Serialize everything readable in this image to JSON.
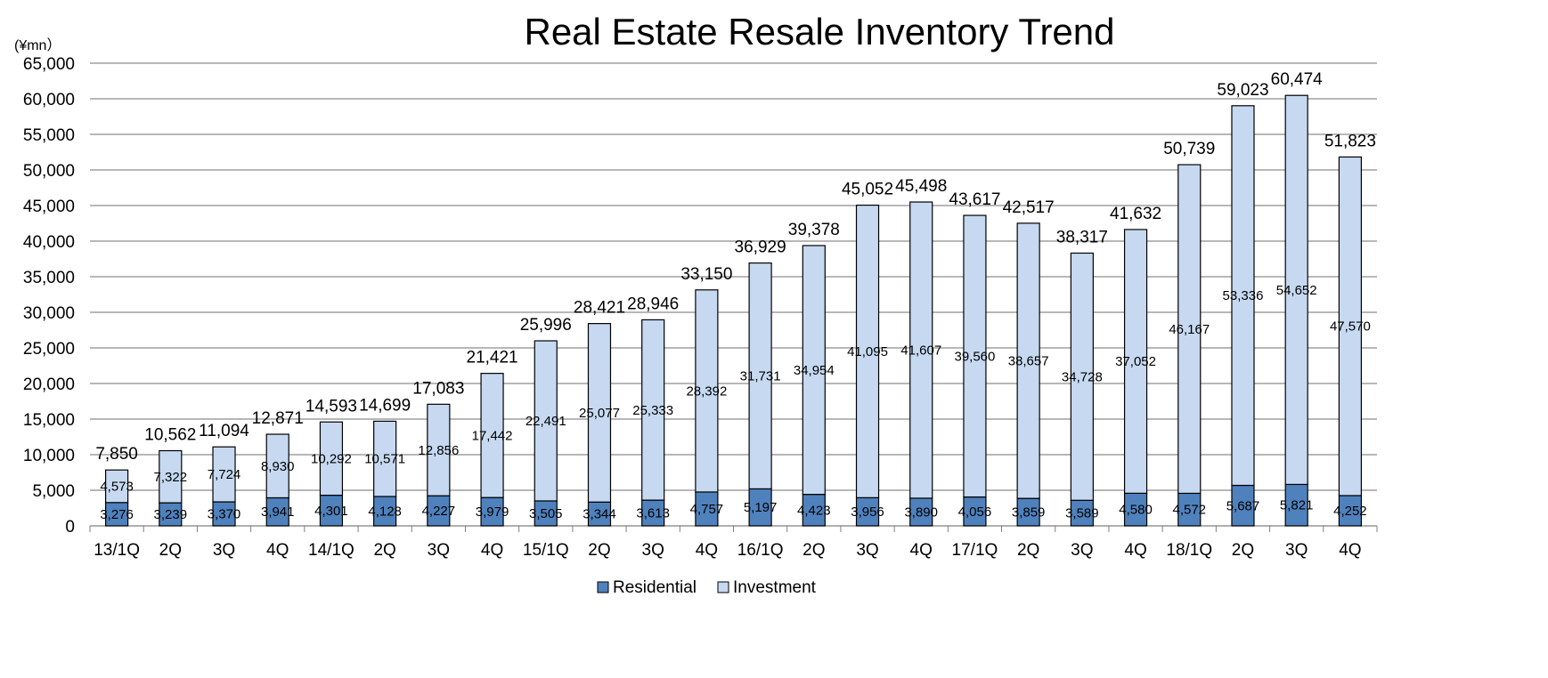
{
  "chart_data": {
    "type": "bar",
    "stacked": true,
    "title": "Real Estate Resale Inventory Trend",
    "unit_label": "(¥mn）",
    "categories": [
      "13/1Q",
      "2Q",
      "3Q",
      "4Q",
      "14/1Q",
      "2Q",
      "3Q",
      "4Q",
      "15/1Q",
      "2Q",
      "3Q",
      "4Q",
      "16/1Q",
      "2Q",
      "3Q",
      "4Q",
      "17/1Q",
      "2Q",
      "3Q",
      "4Q",
      "18/1Q",
      "2Q",
      "3Q",
      "4Q"
    ],
    "series": [
      {
        "name": "Residential",
        "color": "#4f81bd",
        "values": [
          3276,
          3239,
          3370,
          3941,
          4301,
          4128,
          4227,
          3979,
          3505,
          3344,
          3613,
          4757,
          5197,
          4423,
          3956,
          3890,
          4056,
          3859,
          3589,
          4580,
          4572,
          5687,
          5821,
          4252
        ],
        "labels": [
          "3,276",
          "3,239",
          "3,370",
          "3,941",
          "4,301",
          "4,128",
          "4,227",
          "3,979",
          "3,505",
          "3,344",
          "3,613",
          "4,757",
          "5,197",
          "4,423",
          "3,956",
          "3,890",
          "4,056",
          "3,859",
          "3,589",
          "4,580",
          "4,572",
          "5,687",
          "5,821",
          "4,252"
        ]
      },
      {
        "name": "Investment",
        "color": "#c6d9f1",
        "values": [
          4573,
          7322,
          7724,
          8930,
          10292,
          10571,
          12856,
          17442,
          22491,
          25077,
          25333,
          28392,
          31731,
          34954,
          41095,
          41607,
          39560,
          38657,
          34728,
          37052,
          46167,
          53336,
          54652,
          47570
        ],
        "labels": [
          "4,573",
          "7,322",
          "7,724",
          "8,930",
          "10,292",
          "10,571",
          "12,856",
          "17,442",
          "22,491",
          "25,077",
          "25,333",
          "28,392",
          "31,731",
          "34,954",
          "41,095",
          "41,607",
          "39,560",
          "38,657",
          "34,728",
          "37,052",
          "46,167",
          "53,336",
          "54,652",
          "47,570"
        ]
      }
    ],
    "totals": [
      7850,
      10562,
      11094,
      12871,
      14593,
      14699,
      17083,
      21421,
      25996,
      28421,
      28946,
      33150,
      36929,
      39378,
      45052,
      45498,
      43617,
      42517,
      38317,
      41632,
      50739,
      59023,
      60474,
      51823
    ],
    "total_labels": [
      "7,850",
      "10,562",
      "11,094",
      "12,871",
      "14,593",
      "14,699",
      "17,083",
      "21,421",
      "25,996",
      "28,421",
      "28,946",
      "33,150",
      "36,929",
      "39,378",
      "45,052",
      "45,498",
      "43,617",
      "42,517",
      "38,317",
      "41,632",
      "50,739",
      "59,023",
      "60,474",
      "51,823"
    ],
    "ylim": [
      0,
      65000
    ],
    "yticks": [
      "0",
      "5,000",
      "10,000",
      "15,000",
      "20,000",
      "25,000",
      "30,000",
      "35,000",
      "40,000",
      "45,000",
      "50,000",
      "55,000",
      "60,000",
      "65,000"
    ],
    "ytick_values": [
      0,
      5000,
      10000,
      15000,
      20000,
      25000,
      30000,
      35000,
      40000,
      45000,
      50000,
      55000,
      60000,
      65000
    ],
    "grid": true,
    "legend_position": "bottom-center"
  }
}
